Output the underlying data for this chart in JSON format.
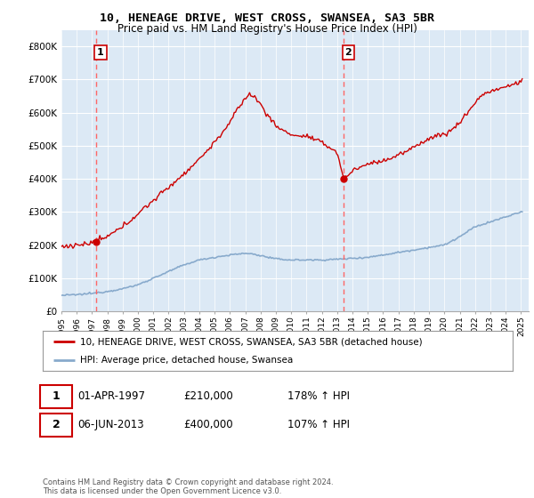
{
  "title_line1": "10, HENEAGE DRIVE, WEST CROSS, SWANSEA, SA3 5BR",
  "title_line2": "Price paid vs. HM Land Registry's House Price Index (HPI)",
  "ylim": [
    0,
    850000
  ],
  "xlim_start": 1995.0,
  "xlim_end": 2025.5,
  "yticks": [
    0,
    100000,
    200000,
    300000,
    400000,
    500000,
    600000,
    700000,
    800000
  ],
  "ytick_labels": [
    "£0",
    "£100K",
    "£200K",
    "£300K",
    "£400K",
    "£500K",
    "£600K",
    "£700K",
    "£800K"
  ],
  "xtick_years": [
    1995,
    1996,
    1997,
    1998,
    1999,
    2000,
    2001,
    2002,
    2003,
    2004,
    2005,
    2006,
    2007,
    2008,
    2009,
    2010,
    2011,
    2012,
    2013,
    2014,
    2015,
    2016,
    2017,
    2018,
    2019,
    2020,
    2021,
    2022,
    2023,
    2024,
    2025
  ],
  "sale1_x": 1997.25,
  "sale1_y": 210000,
  "sale1_label": "1",
  "sale2_x": 2013.43,
  "sale2_y": 400000,
  "sale2_label": "2",
  "red_line_color": "#cc0000",
  "blue_line_color": "#88aacc",
  "plot_bg_color": "#dce9f5",
  "grid_color": "#ffffff",
  "vline_color": "#ff6666",
  "legend_line1": "10, HENEAGE DRIVE, WEST CROSS, SWANSEA, SA3 5BR (detached house)",
  "legend_line2": "HPI: Average price, detached house, Swansea",
  "info1_label": "1",
  "info1_date": "01-APR-1997",
  "info1_price": "£210,000",
  "info1_hpi": "178% ↑ HPI",
  "info2_label": "2",
  "info2_date": "06-JUN-2013",
  "info2_price": "£400,000",
  "info2_hpi": "107% ↑ HPI",
  "footer": "Contains HM Land Registry data © Crown copyright and database right 2024.\nThis data is licensed under the Open Government Licence v3.0."
}
